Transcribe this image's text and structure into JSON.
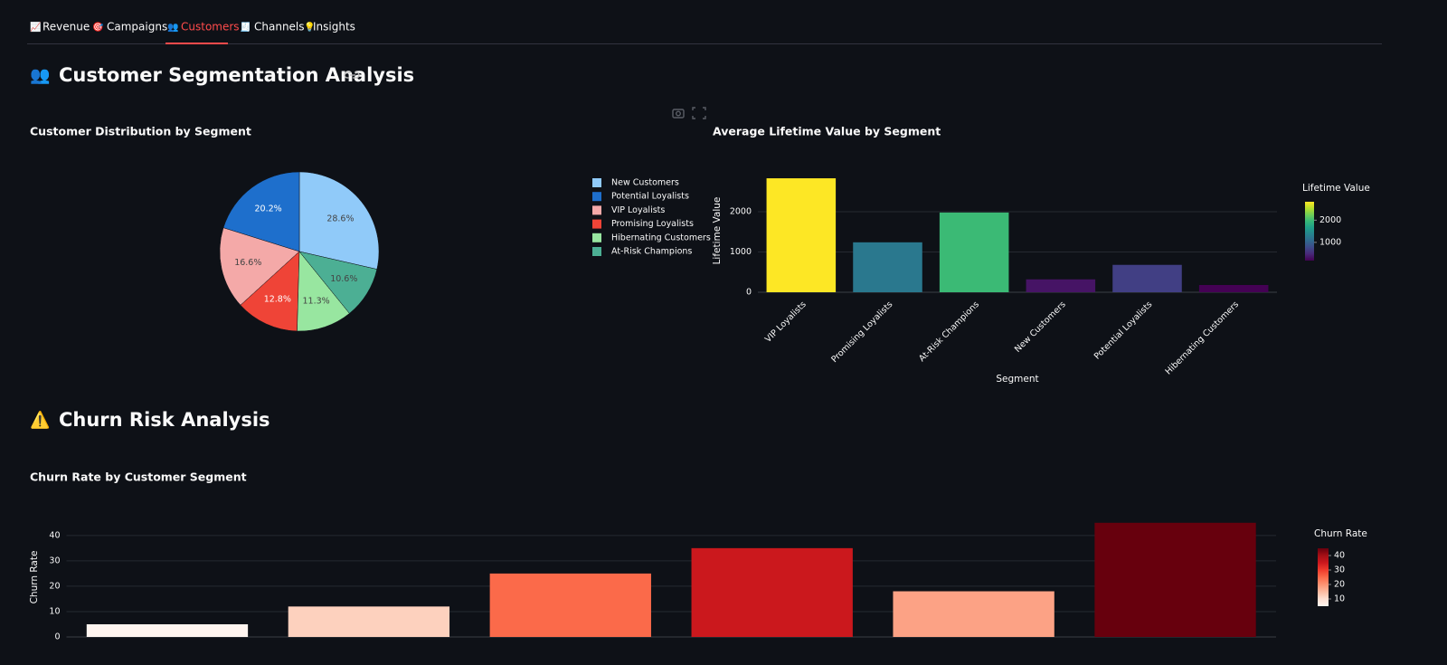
{
  "tabs": [
    {
      "icon": "📈",
      "label": "Revenue"
    },
    {
      "icon": "🎯",
      "label": "Campaigns"
    },
    {
      "icon": "👥",
      "label": "Customers"
    },
    {
      "icon": "🧾",
      "label": "Channels"
    },
    {
      "icon": "💡",
      "label": "Insights"
    }
  ],
  "active_tab": 2,
  "sections": [
    {
      "icon": "👥",
      "title": "Customer Segmentation Analysis"
    },
    {
      "icon": "⚠️",
      "title": "Churn Risk Analysis"
    }
  ],
  "chart_data": [
    {
      "type": "pie",
      "title": "Customer Distribution by Segment",
      "categories": [
        "New Customers",
        "Potential Loyalists",
        "VIP Loyalists",
        "Promising Loyalists",
        "Hibernating Customers",
        "At-Risk Champions"
      ],
      "values": [
        28.6,
        20.2,
        16.6,
        12.8,
        11.3,
        10.6
      ],
      "value_labels": [
        "28.6%",
        "20.2%",
        "16.6%",
        "12.8%",
        "11.3%",
        "10.6%"
      ],
      "colors": [
        "#90caf9",
        "#1e6fcc",
        "#f4a9a8",
        "#ef4437",
        "#98e6a0",
        "#4caf94"
      ],
      "legend": "right"
    },
    {
      "type": "bar",
      "title": "Average Lifetime Value by Segment",
      "x_label": "Segment",
      "y_label": "Lifetime Value",
      "categories": [
        "VIP Loyalists",
        "Promising Loyalists",
        "At-Risk Champions",
        "New Customers",
        "Potential Loyalists",
        "Hibernating Customers"
      ],
      "values": [
        2830,
        1240,
        1980,
        320,
        680,
        180
      ],
      "ylim": [
        0,
        3000
      ],
      "yticks": [
        0,
        1000,
        2000
      ],
      "grid": true,
      "colorbar": {
        "title": "Lifetime Value",
        "ticks": [
          1000,
          2000
        ],
        "colorscale": [
          "#440154",
          "#482878",
          "#3e4989",
          "#31688e",
          "#26828e",
          "#1f9e89",
          "#35b779",
          "#6ece58",
          "#b5de2b",
          "#fde725"
        ]
      }
    },
    {
      "type": "bar",
      "title": "Churn Rate by Customer Segment",
      "y_label": "Churn Rate",
      "categories": [
        null,
        null,
        null,
        null,
        null,
        null
      ],
      "values": [
        5,
        12,
        25,
        35,
        18,
        45
      ],
      "ylim": [
        0,
        46
      ],
      "yticks": [
        0,
        10,
        20,
        30,
        40
      ],
      "grid": true,
      "colorbar": {
        "title": "Churn Rate",
        "ticks": [
          10,
          20,
          30,
          40
        ],
        "colorscale": [
          "#fff5f0",
          "#fee0d2",
          "#fcbba1",
          "#fc9272",
          "#fb6a4a",
          "#ef3b2c",
          "#cb181d",
          "#a50f15",
          "#67000d"
        ]
      }
    }
  ]
}
